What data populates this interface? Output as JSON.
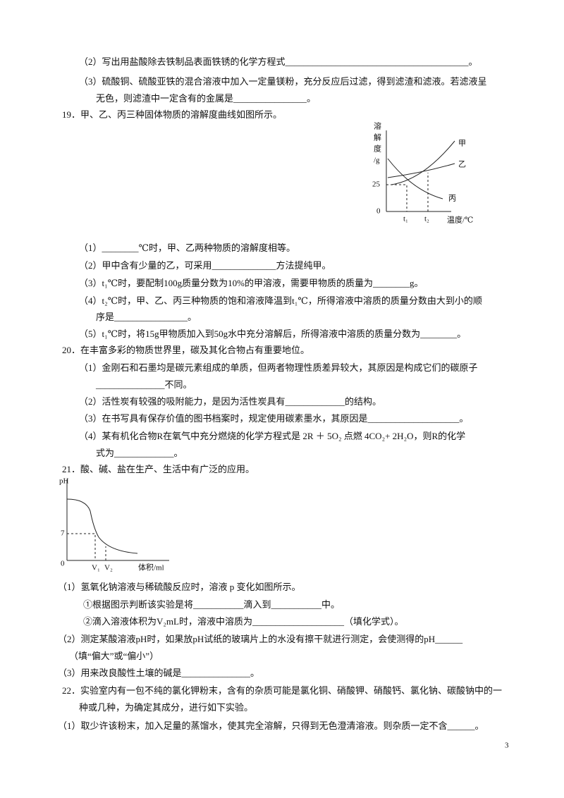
{
  "lines": [
    "（2）写出用盐酸除去铁制品表面铁锈的化学方程式________________________________________。",
    "（3）硫酸铜、硫酸亚铁的混合溶液中加入一定量镁粉，充分反应后过滤，得到滤渣和滤液。若滤液呈",
    "无色，则滤渣中一定含有的金属是________________。",
    "19．甲、乙、丙三种固体物质的溶解度曲线如图所示。",
    "（1）________℃时，甲、乙两种物质的溶解度相等。",
    "（2）甲中含有少量的乙，可采用______________方法提纯甲。",
    "（3）t₁℃时，要配制100g质量分数为10%的甲溶液，需要甲物质的质量为________g。",
    "（4）t₂℃时，甲、乙、丙三种物质的饱和溶液降温到t₁℃，所得溶液中溶质的质量分数由大到小的顺",
    "序是________________。",
    "（5）t₁℃时，将15g甲物质加入到50g水中充分溶解后，所得溶液中溶质的质量分数为________。",
    "20．在丰富多彩的物质世界里，碳及其化合物占有重要地位。",
    "（1）金刚石和石墨均是碳元素组成的单质，但两者物理性质差异较大，其原因是构成它们的碳原子",
    "_______________不同。",
    "（2）活性炭有较强的吸附能力，是因为活性炭具有_____________的结构。",
    "（3）在书写具有保存价值的图书档案时，规定使用碳素墨水，其原因是____________________。",
    "（4）某有机化合物R在氧气中充分燃烧的化学方程式是 2R ＋ 5O₂ 点燃 4CO₂+ 2H₂O，则R的化学",
    "式为_____________。",
    "21．酸、碱、盐在生产、生活中有广泛的应用。",
    "（1）氢氧化钠溶液与稀硫酸反应时，溶液 p 变化如图所示。",
    "①根据图示判断该实验是将___________滴入到___________中。",
    "②滴入溶液体积为V₂mL时，溶液中溶质为____________________（填化学式）。",
    "（2）测定某酸溶液pH时，如果放pH试纸的玻璃片上的水没有擦干就进行测定，会使测得的pH______",
    "（填“偏大”或“偏小”）",
    "（3）用来改良酸性土壤的碱是_______________。",
    "22．实验室内有一包不纯的氯化钾粉末，含有的杂质可能是氯化铜、硝酸钾、硝酸钙、氯化钠、碳酸钠中的一",
    "种或几种，为确定其成分，进行如下实验。",
    "（1）取少许该粉末，加入足量的蒸馏水，使其完全溶解，只得到无色澄清溶液。则杂质一定不含______。"
  ],
  "figure1": {
    "y_label": [
      "溶",
      "解",
      "度",
      "/g"
    ],
    "y_tick": "25",
    "origin": "0",
    "curves": [
      "甲",
      "乙",
      "丙"
    ],
    "x_ticks": [
      "t₁",
      "t₂"
    ],
    "x_label": "温度/℃"
  },
  "figure2": {
    "y_label": "pH",
    "y_tick": "7",
    "origin": "0",
    "x_ticks": [
      "V₁",
      "V₂"
    ],
    "x_label": "体积/ml"
  },
  "page_number": "3"
}
